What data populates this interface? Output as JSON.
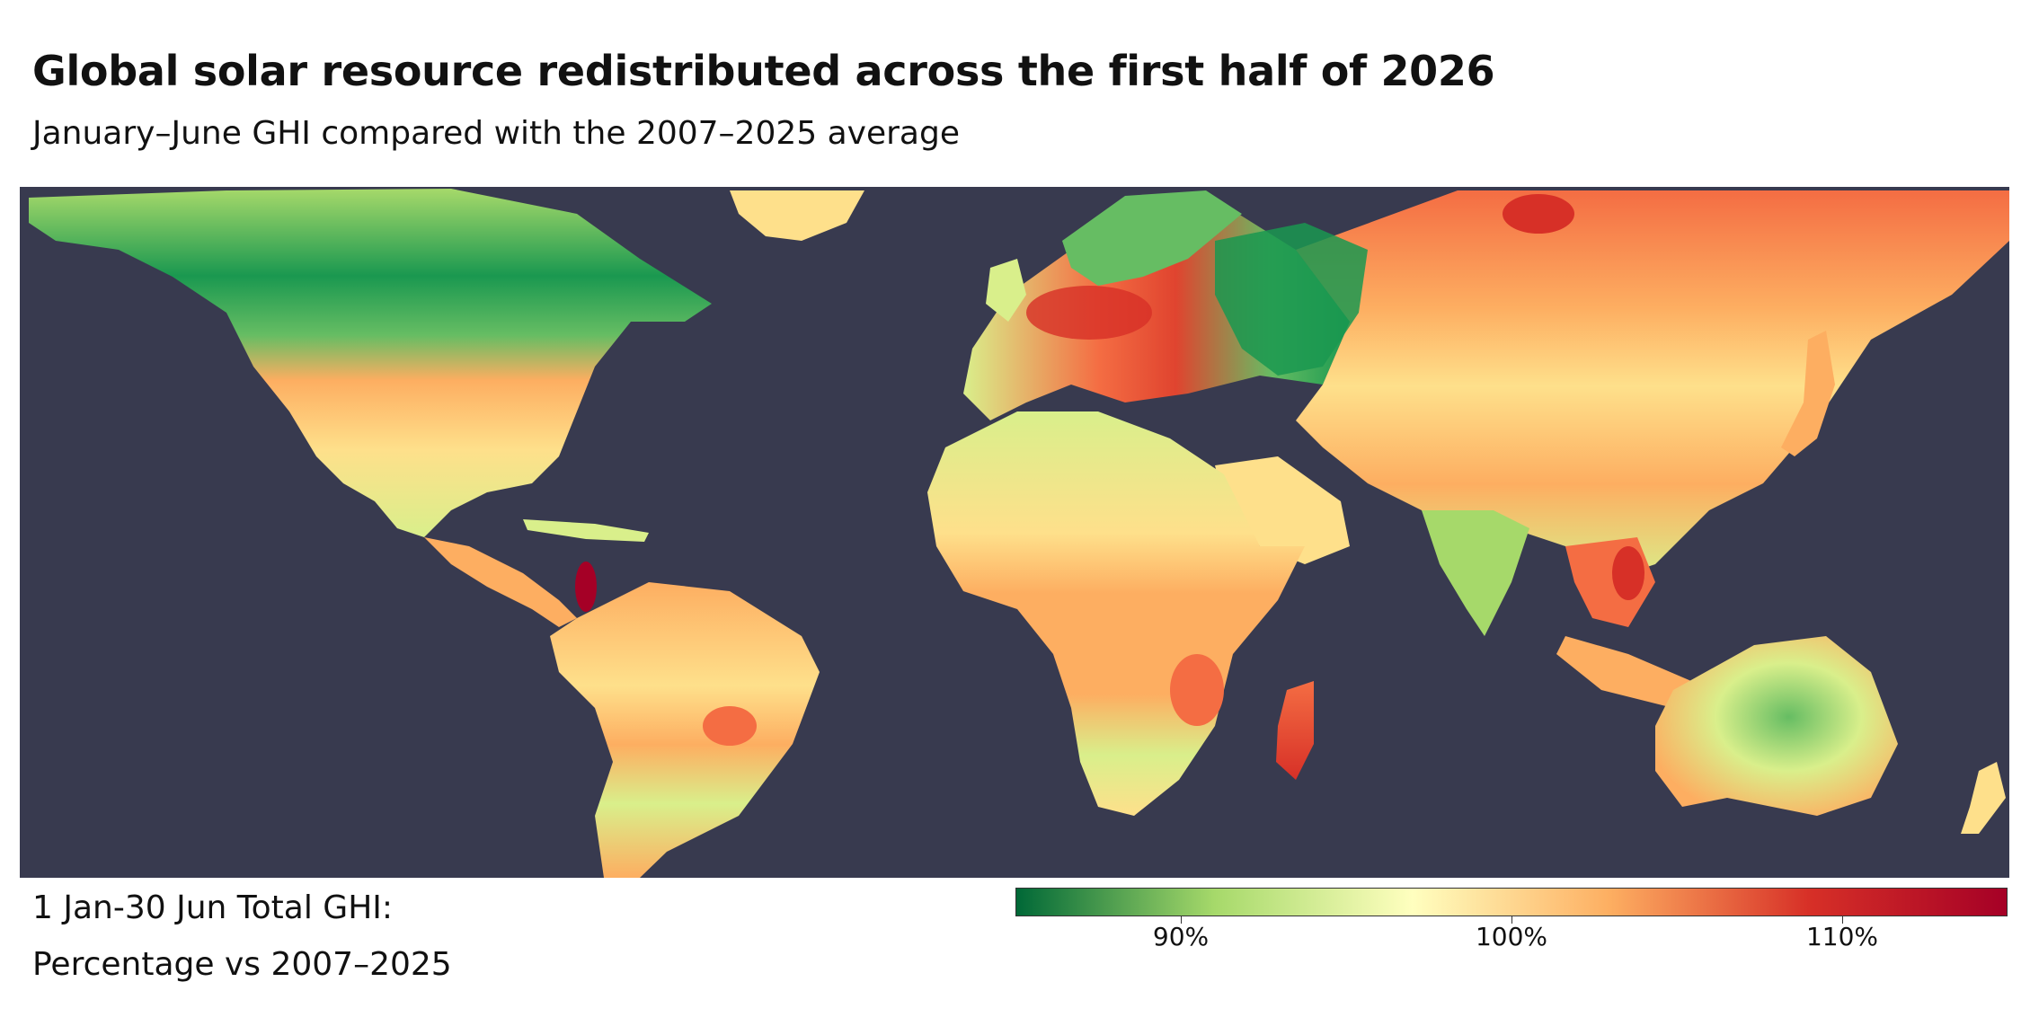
{
  "title": "Global solar resource redistributed across the first half of 2026",
  "subtitle": "January–June GHI compared with the 2007–2025 average",
  "legend": {
    "caption_line1": "1 Jan-30 Jun Total GHI:",
    "caption_line2": "Percentage vs 2007–2025",
    "range": [
      85,
      115
    ],
    "ticks": [
      {
        "value": 90,
        "label": "90%"
      },
      {
        "value": 100,
        "label": "100%"
      },
      {
        "value": 110,
        "label": "110%"
      }
    ],
    "colors": {
      "low": "#006837",
      "mid_low": "#a6d96a",
      "neutral": "#ffffbf",
      "mid_high": "#fdae61",
      "high": "#d73027",
      "max": "#a50026",
      "ocean": "#383a4f"
    }
  }
}
